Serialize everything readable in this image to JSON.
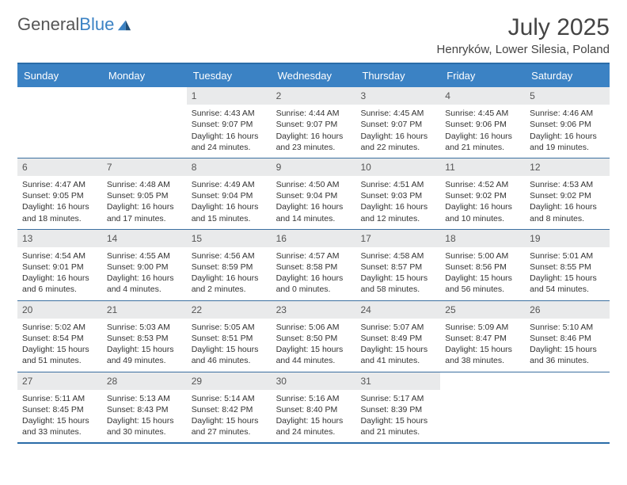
{
  "brand": {
    "part1": "General",
    "part2": "Blue"
  },
  "title": "July 2025",
  "location": "Henryków, Lower Silesia, Poland",
  "colors": {
    "accent": "#3b82c4",
    "rule": "#2a6ca8",
    "daybar": "#e9eaeb"
  },
  "day_headers": [
    "Sunday",
    "Monday",
    "Tuesday",
    "Wednesday",
    "Thursday",
    "Friday",
    "Saturday"
  ],
  "weeks": [
    [
      {
        "empty": true
      },
      {
        "empty": true
      },
      {
        "n": "1",
        "sr": "4:43 AM",
        "ss": "9:07 PM",
        "dl": "16 hours and 24 minutes."
      },
      {
        "n": "2",
        "sr": "4:44 AM",
        "ss": "9:07 PM",
        "dl": "16 hours and 23 minutes."
      },
      {
        "n": "3",
        "sr": "4:45 AM",
        "ss": "9:07 PM",
        "dl": "16 hours and 22 minutes."
      },
      {
        "n": "4",
        "sr": "4:45 AM",
        "ss": "9:06 PM",
        "dl": "16 hours and 21 minutes."
      },
      {
        "n": "5",
        "sr": "4:46 AM",
        "ss": "9:06 PM",
        "dl": "16 hours and 19 minutes."
      }
    ],
    [
      {
        "n": "6",
        "sr": "4:47 AM",
        "ss": "9:05 PM",
        "dl": "16 hours and 18 minutes."
      },
      {
        "n": "7",
        "sr": "4:48 AM",
        "ss": "9:05 PM",
        "dl": "16 hours and 17 minutes."
      },
      {
        "n": "8",
        "sr": "4:49 AM",
        "ss": "9:04 PM",
        "dl": "16 hours and 15 minutes."
      },
      {
        "n": "9",
        "sr": "4:50 AM",
        "ss": "9:04 PM",
        "dl": "16 hours and 14 minutes."
      },
      {
        "n": "10",
        "sr": "4:51 AM",
        "ss": "9:03 PM",
        "dl": "16 hours and 12 minutes."
      },
      {
        "n": "11",
        "sr": "4:52 AM",
        "ss": "9:02 PM",
        "dl": "16 hours and 10 minutes."
      },
      {
        "n": "12",
        "sr": "4:53 AM",
        "ss": "9:02 PM",
        "dl": "16 hours and 8 minutes."
      }
    ],
    [
      {
        "n": "13",
        "sr": "4:54 AM",
        "ss": "9:01 PM",
        "dl": "16 hours and 6 minutes."
      },
      {
        "n": "14",
        "sr": "4:55 AM",
        "ss": "9:00 PM",
        "dl": "16 hours and 4 minutes."
      },
      {
        "n": "15",
        "sr": "4:56 AM",
        "ss": "8:59 PM",
        "dl": "16 hours and 2 minutes."
      },
      {
        "n": "16",
        "sr": "4:57 AM",
        "ss": "8:58 PM",
        "dl": "16 hours and 0 minutes."
      },
      {
        "n": "17",
        "sr": "4:58 AM",
        "ss": "8:57 PM",
        "dl": "15 hours and 58 minutes."
      },
      {
        "n": "18",
        "sr": "5:00 AM",
        "ss": "8:56 PM",
        "dl": "15 hours and 56 minutes."
      },
      {
        "n": "19",
        "sr": "5:01 AM",
        "ss": "8:55 PM",
        "dl": "15 hours and 54 minutes."
      }
    ],
    [
      {
        "n": "20",
        "sr": "5:02 AM",
        "ss": "8:54 PM",
        "dl": "15 hours and 51 minutes."
      },
      {
        "n": "21",
        "sr": "5:03 AM",
        "ss": "8:53 PM",
        "dl": "15 hours and 49 minutes."
      },
      {
        "n": "22",
        "sr": "5:05 AM",
        "ss": "8:51 PM",
        "dl": "15 hours and 46 minutes."
      },
      {
        "n": "23",
        "sr": "5:06 AM",
        "ss": "8:50 PM",
        "dl": "15 hours and 44 minutes."
      },
      {
        "n": "24",
        "sr": "5:07 AM",
        "ss": "8:49 PM",
        "dl": "15 hours and 41 minutes."
      },
      {
        "n": "25",
        "sr": "5:09 AM",
        "ss": "8:47 PM",
        "dl": "15 hours and 38 minutes."
      },
      {
        "n": "26",
        "sr": "5:10 AM",
        "ss": "8:46 PM",
        "dl": "15 hours and 36 minutes."
      }
    ],
    [
      {
        "n": "27",
        "sr": "5:11 AM",
        "ss": "8:45 PM",
        "dl": "15 hours and 33 minutes."
      },
      {
        "n": "28",
        "sr": "5:13 AM",
        "ss": "8:43 PM",
        "dl": "15 hours and 30 minutes."
      },
      {
        "n": "29",
        "sr": "5:14 AM",
        "ss": "8:42 PM",
        "dl": "15 hours and 27 minutes."
      },
      {
        "n": "30",
        "sr": "5:16 AM",
        "ss": "8:40 PM",
        "dl": "15 hours and 24 minutes."
      },
      {
        "n": "31",
        "sr": "5:17 AM",
        "ss": "8:39 PM",
        "dl": "15 hours and 21 minutes."
      },
      {
        "empty": true
      },
      {
        "empty": true
      }
    ]
  ],
  "labels": {
    "sunrise": "Sunrise:",
    "sunset": "Sunset:",
    "daylight": "Daylight:"
  }
}
